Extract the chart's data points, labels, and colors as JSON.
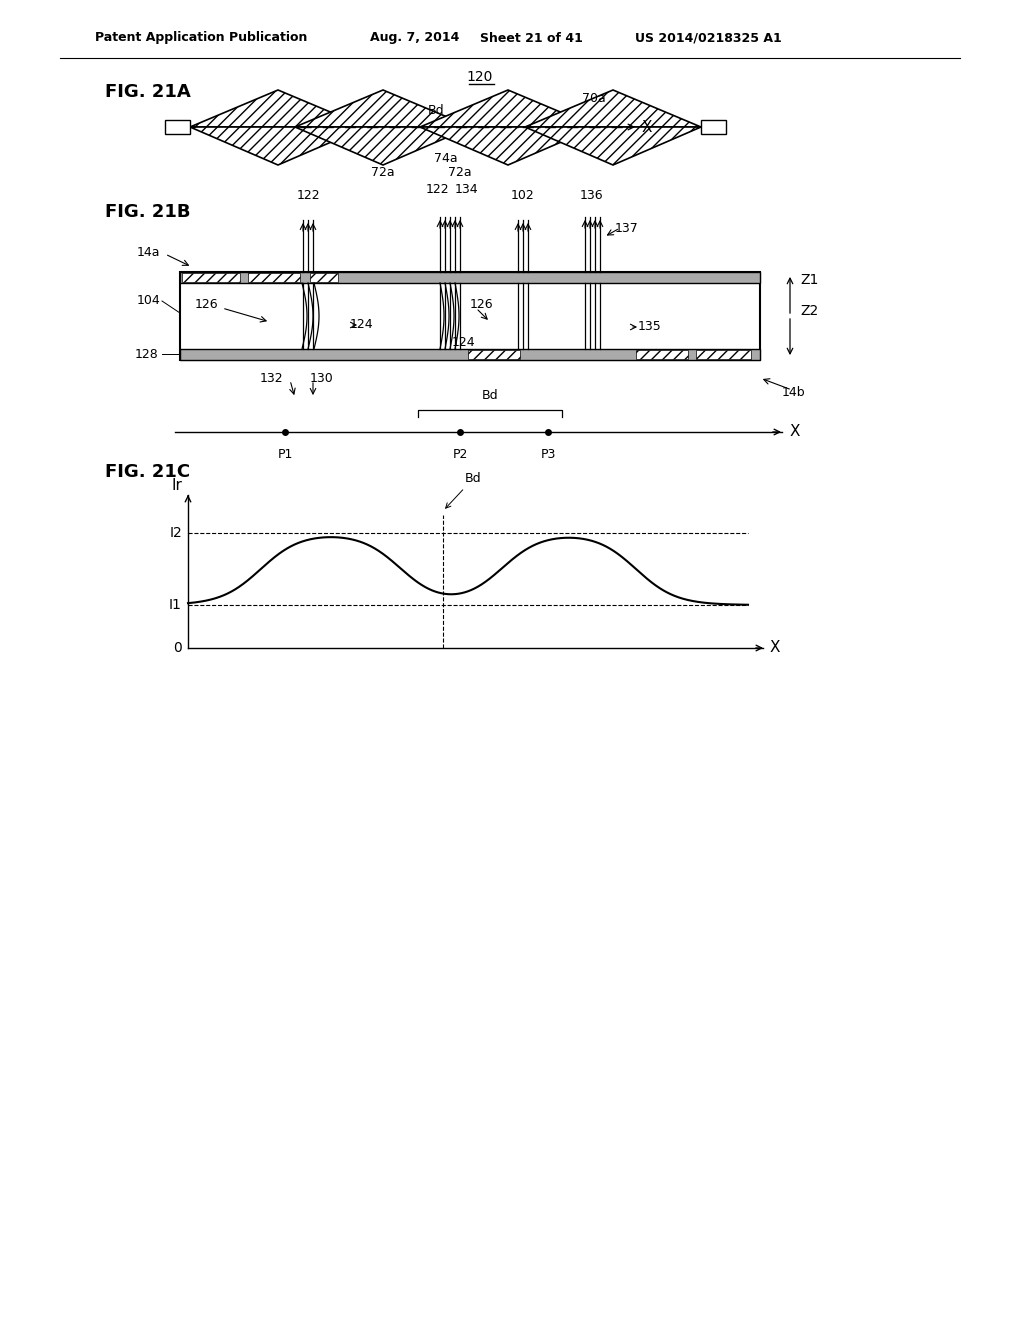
{
  "bg_color": "#ffffff",
  "header_text": "Patent Application Publication",
  "header_date": "Aug. 7, 2014",
  "header_sheet": "Sheet 21 of 41",
  "header_patent": "US 2014/0218325 A1",
  "fig21a_label": "FIG. 21A",
  "fig21b_label": "FIG. 21B",
  "fig21c_label": "FIG. 21C"
}
